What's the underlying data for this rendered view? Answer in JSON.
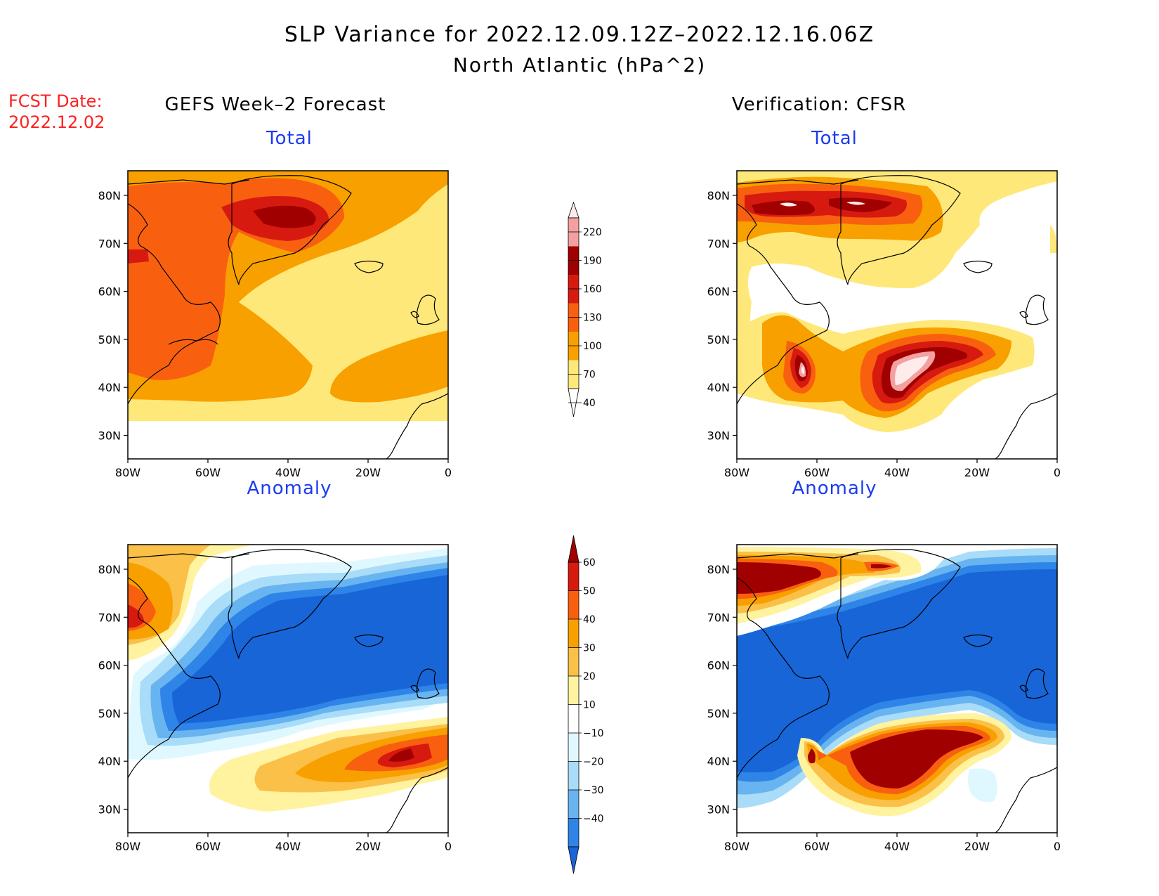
{
  "title": "SLP Variance for 2022.12.09.12Z–2022.12.16.06Z",
  "subtitle": "North Atlantic (hPa^2)",
  "fcst_label": "FCST Date:",
  "fcst_date": "2022.12.02",
  "left_column": "GEFS Week–2 Forecast",
  "right_column": "Verification: CFSR",
  "panels": {
    "fcst_total": "Total",
    "verif_total": "Total",
    "fcst_anomaly": "Anomaly",
    "verif_anomaly": "Anomaly"
  },
  "axes": {
    "lon_labels": [
      "80W",
      "60W",
      "40W",
      "20W",
      "0"
    ],
    "lat_labels": [
      "80N",
      "70N",
      "60N",
      "50N",
      "40N",
      "30N"
    ]
  },
  "total_colorbar": {
    "levels": [
      "220",
      "190",
      "160",
      "130",
      "100",
      "70",
      "40"
    ],
    "colors": [
      "#fdecea",
      "#f4a0a0",
      "#a00000",
      "#d71a10",
      "#f86010",
      "#f8a000",
      "#ffe87a"
    ]
  },
  "anomaly_colorbar": {
    "levels": [
      "60",
      "50",
      "40",
      "30",
      "20",
      "10",
      "−10",
      "−20",
      "−30",
      "−40"
    ],
    "colors": [
      "#a00000",
      "#d71a10",
      "#f86010",
      "#f8a000",
      "#fbc048",
      "#fff3a0",
      "#ffffff",
      "#dff8ff",
      "#a8dcf8",
      "#68b4f0",
      "#2f84e8",
      "#1865d8"
    ]
  }
}
